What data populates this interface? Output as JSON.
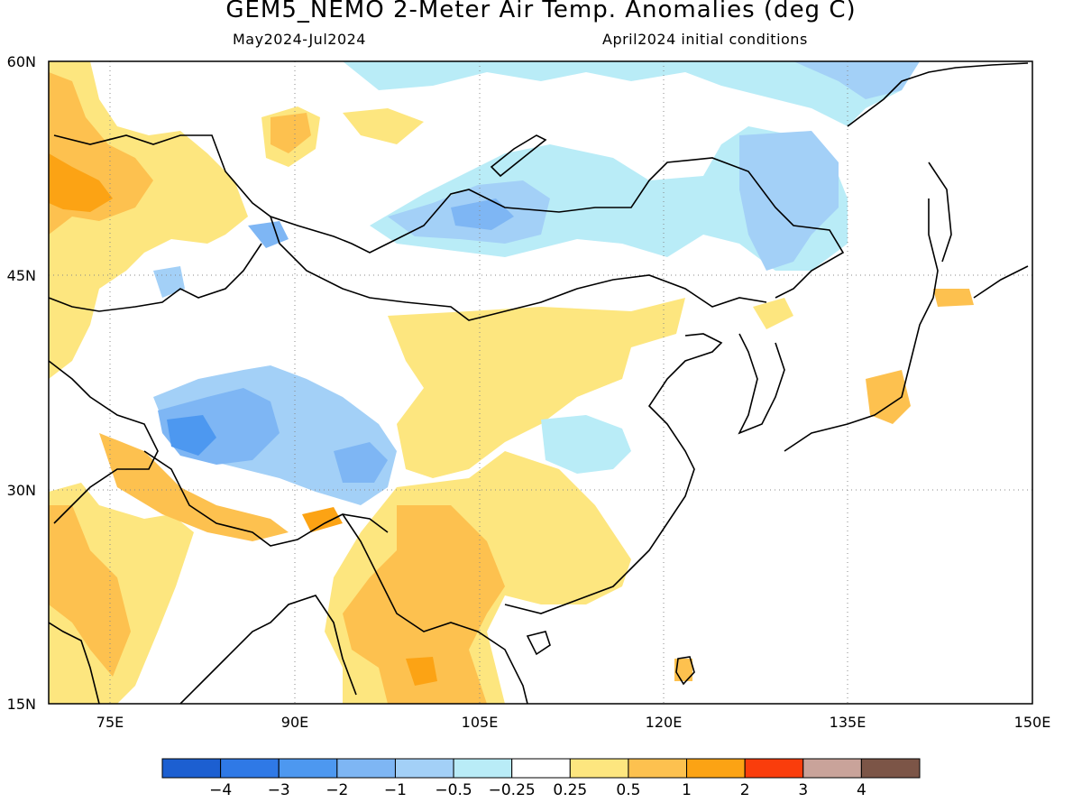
{
  "title": "GEM5_NEMO 2-Meter Air Temp. Anomalies (deg C)",
  "subtitle_left": "May2024-Jul2024",
  "subtitle_right": "April2024 initial conditions",
  "map": {
    "lon_range": [
      70,
      150
    ],
    "lat_range": [
      15,
      60
    ],
    "lon_ticks": [
      "75E",
      "90E",
      "105E",
      "120E",
      "135E",
      "150E"
    ],
    "lat_ticks": [
      "60N",
      "45N",
      "30N",
      "15N"
    ],
    "grid": "dotted"
  },
  "colorbar": {
    "labels": [
      "-4",
      "-3",
      "-2",
      "-1",
      "-0.5",
      "-0.25",
      "0.25",
      "0.5",
      "1",
      "2",
      "3",
      "4"
    ],
    "colors": [
      "#1c5fd1",
      "#2f79e6",
      "#4d98f0",
      "#7eb6f4",
      "#a3d0f7",
      "#b9ecf7",
      "#ffffff",
      "#fde67f",
      "#fdc14f",
      "#fca314",
      "#fa3d0c",
      "#c9a39a",
      "#7c5547"
    ]
  },
  "chart_data": {
    "type": "heatmap",
    "title": "GEM5_NEMO 2-Meter Air Temp. Anomalies (deg C)",
    "subtitle": "May2024-Jul2024 / April2024 initial conditions",
    "xlim": [
      70,
      150
    ],
    "ylim": [
      15,
      60
    ],
    "units": "deg C",
    "levels": [
      -4,
      -3,
      -2,
      -1,
      -0.5,
      -0.25,
      0.25,
      0.5,
      1,
      2,
      3,
      4
    ]
  }
}
